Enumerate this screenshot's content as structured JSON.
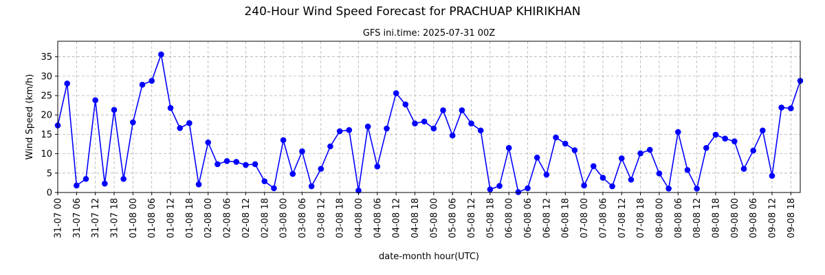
{
  "chart_data": {
    "type": "line",
    "title": "240-Hour Wind Speed Forecast for PRACHUAP KHIRIKHAN",
    "subtitle": "GFS ini.time: 2025-07-31 00Z",
    "xlabel": "date-month hour(UTC)",
    "ylabel": "Wind Speed (km/h)",
    "ylim": [
      0,
      39
    ],
    "yticks": [
      0,
      5,
      10,
      15,
      20,
      25,
      30,
      35
    ],
    "grid": true,
    "x_step_hours": 3,
    "x_tick_every": 2,
    "x_tick_labels": [
      "31-07 00",
      "31-07 06",
      "31-07 12",
      "31-07 18",
      "01-08 00",
      "01-08 06",
      "01-08 12",
      "01-08 18",
      "02-08 00",
      "02-08 06",
      "02-08 12",
      "02-08 18",
      "03-08 00",
      "03-08 06",
      "03-08 12",
      "03-08 18",
      "04-08 00",
      "04-08 06",
      "04-08 12",
      "04-08 18",
      "05-08 00",
      "05-08 06",
      "05-08 12",
      "05-08 18",
      "06-08 00",
      "06-08 06",
      "06-08 12",
      "06-08 18",
      "07-08 00",
      "07-08 06",
      "07-08 12",
      "07-08 18",
      "08-08 00",
      "08-08 06",
      "08-08 12",
      "08-08 18",
      "09-08 00",
      "09-08 06",
      "09-08 12",
      "09-08 18"
    ],
    "series": [
      {
        "color": "#0000ff",
        "marker": "circle",
        "values": [
          17.3,
          28.1,
          1.8,
          3.5,
          23.8,
          2.3,
          21.3,
          3.5,
          18.1,
          27.8,
          28.8,
          35.6,
          21.8,
          16.6,
          17.9,
          2.1,
          12.9,
          7.3,
          8.1,
          7.9,
          7.1,
          7.3,
          2.9,
          1.1,
          13.5,
          4.8,
          10.6,
          1.6,
          6.1,
          11.9,
          15.8,
          16.1,
          0.5,
          17.0,
          6.7,
          16.5,
          25.6,
          22.7,
          17.8,
          18.3,
          16.5,
          21.2,
          14.7,
          21.2,
          17.8,
          16.0,
          0.8,
          1.7,
          11.5,
          0.1,
          1.1,
          9.0,
          4.6,
          14.2,
          12.6,
          10.9,
          1.8,
          6.8,
          3.8,
          1.6,
          8.8,
          3.3,
          10.1,
          11.0,
          4.9,
          1.0,
          15.6,
          5.8,
          1.0,
          11.5,
          14.9,
          13.9,
          13.2,
          6.1,
          10.8,
          16.0,
          4.3,
          21.9,
          21.7,
          28.8
        ]
      }
    ]
  }
}
